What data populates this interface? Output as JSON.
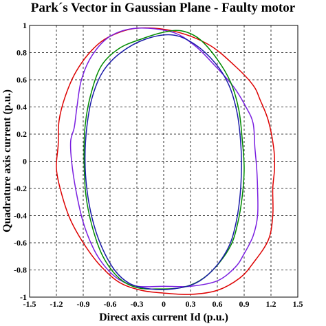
{
  "chart_data": {
    "type": "line",
    "title": "Park´s Vector in Gaussian Plane - Faulty motor",
    "xlabel": "Direct axis current Id (p.u.)",
    "ylabel": "Quadrature axis current (p.u.)",
    "xlim": [
      -1.5,
      1.5
    ],
    "ylim": [
      -1,
      1
    ],
    "xticks": [
      -1.5,
      -1.2,
      -0.9,
      -0.6,
      -0.3,
      0,
      0.3,
      0.6,
      0.9,
      1.2,
      1.5
    ],
    "yticks": [
      -1,
      -0.8,
      -0.6,
      -0.4,
      -0.2,
      0,
      0.2,
      0.4,
      0.6,
      0.8,
      1
    ],
    "xtick_labels": [
      "-1.5",
      "-1.2",
      "-0.9",
      "-0.6",
      "-0.3",
      "0",
      "0.3",
      "0.6",
      "0.9",
      "1.2",
      "1.5"
    ],
    "ytick_labels": [
      "-1",
      "-0.8",
      "-0.6",
      "-0.4",
      "-0.2",
      "0",
      "0.2",
      "0.4",
      "0.6",
      "0.8",
      "1"
    ],
    "grid": true,
    "series": [
      {
        "color": "#dd0000",
        "points": [
          [
            -0.3,
            0.98
          ],
          [
            0.1,
            0.96
          ],
          [
            0.5,
            0.86
          ],
          [
            0.8,
            0.7
          ],
          [
            1.0,
            0.56
          ],
          [
            1.08,
            0.45
          ],
          [
            1.17,
            0.3
          ],
          [
            1.23,
            0.1
          ],
          [
            1.24,
            -0.05
          ],
          [
            1.22,
            -0.2
          ],
          [
            1.22,
            -0.4
          ],
          [
            1.17,
            -0.58
          ],
          [
            1.0,
            -0.75
          ],
          [
            0.85,
            -0.86
          ],
          [
            0.6,
            -0.95
          ],
          [
            0.3,
            -0.98
          ],
          [
            0.0,
            -0.97
          ],
          [
            -0.25,
            -0.95
          ],
          [
            -0.5,
            -0.89
          ],
          [
            -0.72,
            -0.76
          ],
          [
            -0.9,
            -0.6
          ],
          [
            -1.05,
            -0.42
          ],
          [
            -1.15,
            -0.22
          ],
          [
            -1.2,
            -0.05
          ],
          [
            -1.18,
            0.12
          ],
          [
            -1.17,
            0.3
          ],
          [
            -1.1,
            0.48
          ],
          [
            -0.98,
            0.66
          ],
          [
            -0.8,
            0.82
          ],
          [
            -0.6,
            0.92
          ],
          [
            -0.3,
            0.98
          ]
        ]
      },
      {
        "color": "#7a1fe0",
        "points": [
          [
            -0.3,
            0.98
          ],
          [
            0.1,
            0.95
          ],
          [
            0.35,
            0.85
          ],
          [
            0.55,
            0.72
          ],
          [
            0.78,
            0.55
          ],
          [
            0.92,
            0.4
          ],
          [
            1.0,
            0.28
          ],
          [
            1.02,
            0.1
          ],
          [
            1.04,
            -0.05
          ],
          [
            1.05,
            -0.2
          ],
          [
            1.05,
            -0.4
          ],
          [
            1.0,
            -0.55
          ],
          [
            0.9,
            -0.68
          ],
          [
            0.8,
            -0.78
          ],
          [
            0.6,
            -0.88
          ],
          [
            0.3,
            -0.92
          ],
          [
            0.0,
            -0.92
          ],
          [
            -0.3,
            -0.92
          ],
          [
            -0.5,
            -0.87
          ],
          [
            -0.65,
            -0.78
          ],
          [
            -0.78,
            -0.65
          ],
          [
            -0.9,
            -0.45
          ],
          [
            -0.98,
            -0.22
          ],
          [
            -1.03,
            0.0
          ],
          [
            -1.04,
            0.15
          ],
          [
            -1.0,
            0.25
          ],
          [
            -0.97,
            0.4
          ],
          [
            -0.92,
            0.6
          ],
          [
            -0.8,
            0.78
          ],
          [
            -0.6,
            0.92
          ],
          [
            -0.3,
            0.98
          ]
        ]
      },
      {
        "color": "#008a00",
        "points": [
          [
            0.2,
            0.96
          ],
          [
            0.4,
            0.9
          ],
          [
            0.6,
            0.75
          ],
          [
            0.75,
            0.58
          ],
          [
            0.84,
            0.38
          ],
          [
            0.88,
            0.15
          ],
          [
            0.9,
            -0.05
          ],
          [
            0.88,
            -0.25
          ],
          [
            0.83,
            -0.45
          ],
          [
            0.75,
            -0.62
          ],
          [
            0.58,
            -0.78
          ],
          [
            0.4,
            -0.88
          ],
          [
            0.2,
            -0.93
          ],
          [
            -0.05,
            -0.94
          ],
          [
            -0.3,
            -0.93
          ],
          [
            -0.5,
            -0.86
          ],
          [
            -0.68,
            -0.7
          ],
          [
            -0.8,
            -0.48
          ],
          [
            -0.87,
            -0.25
          ],
          [
            -0.89,
            0.0
          ],
          [
            -0.88,
            0.25
          ],
          [
            -0.82,
            0.48
          ],
          [
            -0.7,
            0.7
          ],
          [
            -0.5,
            0.83
          ],
          [
            -0.25,
            0.9
          ],
          [
            0.0,
            0.95
          ],
          [
            0.2,
            0.96
          ]
        ]
      },
      {
        "color": "#1a1aa8",
        "points": [
          [
            0.1,
            0.93
          ],
          [
            0.35,
            0.86
          ],
          [
            0.58,
            0.72
          ],
          [
            0.73,
            0.56
          ],
          [
            0.82,
            0.36
          ],
          [
            0.86,
            0.15
          ],
          [
            0.87,
            -0.05
          ],
          [
            0.85,
            -0.28
          ],
          [
            0.8,
            -0.48
          ],
          [
            0.72,
            -0.64
          ],
          [
            0.55,
            -0.8
          ],
          [
            0.35,
            -0.9
          ],
          [
            0.1,
            -0.94
          ],
          [
            -0.15,
            -0.94
          ],
          [
            -0.38,
            -0.9
          ],
          [
            -0.55,
            -0.8
          ],
          [
            -0.7,
            -0.62
          ],
          [
            -0.8,
            -0.42
          ],
          [
            -0.86,
            -0.2
          ],
          [
            -0.88,
            0.02
          ],
          [
            -0.86,
            0.25
          ],
          [
            -0.8,
            0.47
          ],
          [
            -0.68,
            0.66
          ],
          [
            -0.48,
            0.8
          ],
          [
            -0.2,
            0.9
          ],
          [
            0.1,
            0.93
          ]
        ]
      }
    ]
  }
}
